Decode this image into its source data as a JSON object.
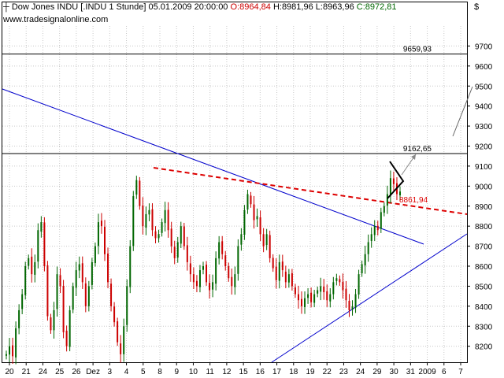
{
  "header": {
    "instrument": "Dow Jones INDU [.INDU  1 Stunde]",
    "datetime": "05.01.2009 20:00:00",
    "open": "O:8964,84",
    "high": "H:8981,96",
    "low": "L:8963,96",
    "close": "C:8972,81",
    "source": "www.tradesignalonline.com",
    "currency": "$"
  },
  "colors": {
    "up_candle": "#006600",
    "down_candle": "#cc0000",
    "trendline": "#0000cc",
    "resistance": "#dd0000",
    "level_line": "#000000",
    "grid": "#c8c8c8"
  },
  "chart_data": {
    "type": "candlestick",
    "y_axis": {
      "min": 8120,
      "max": 9800,
      "ticks": [
        8200,
        8300,
        8400,
        8500,
        8600,
        8700,
        8800,
        8900,
        9000,
        9100,
        9200,
        9300,
        9400,
        9500,
        9600,
        9700
      ],
      "side": "right"
    },
    "x_ticks": [
      "20",
      "21",
      "24",
      "25",
      "26",
      "Dez",
      "3",
      "4",
      "5",
      "8",
      "9",
      "10",
      "11",
      "12",
      "15",
      "16",
      "17",
      "18",
      "19",
      "22",
      "23",
      "24",
      "29",
      "30",
      "31",
      "2009",
      "6",
      "7"
    ],
    "levels": [
      {
        "value": 9659.93,
        "label": "9659,93"
      },
      {
        "value": 9162.65,
        "label": "9162,65"
      }
    ],
    "annotations": [
      {
        "label": "8861,94",
        "value": 8861.94
      }
    ],
    "price_path": [
      [
        0,
        8160
      ],
      [
        1,
        8200
      ],
      [
        2,
        8150
      ],
      [
        3,
        8290
      ],
      [
        4,
        8380
      ],
      [
        5,
        8460
      ],
      [
        6,
        8600
      ],
      [
        7,
        8640
      ],
      [
        8,
        8560
      ],
      [
        9,
        8620
      ],
      [
        10,
        8780
      ],
      [
        11,
        8820
      ],
      [
        12,
        8600
      ],
      [
        13,
        8350
      ],
      [
        14,
        8280
      ],
      [
        15,
        8380
      ],
      [
        16,
        8560
      ],
      [
        17,
        8500
      ],
      [
        18,
        8270
      ],
      [
        19,
        8200
      ],
      [
        20,
        8380
      ],
      [
        21,
        8500
      ],
      [
        22,
        8580
      ],
      [
        23,
        8610
      ],
      [
        24,
        8520
      ],
      [
        25,
        8400
      ],
      [
        26,
        8500
      ],
      [
        27,
        8620
      ],
      [
        28,
        8700
      ],
      [
        29,
        8820
      ],
      [
        30,
        8800
      ],
      [
        31,
        8660
      ],
      [
        32,
        8520
      ],
      [
        33,
        8400
      ],
      [
        34,
        8320
      ],
      [
        35,
        8220
      ],
      [
        36,
        8160
      ],
      [
        37,
        8300
      ],
      [
        38,
        8500
      ],
      [
        39,
        8700
      ],
      [
        40,
        8950
      ],
      [
        41,
        9030
      ],
      [
        42,
        8900
      ],
      [
        43,
        8800
      ],
      [
        44,
        8860
      ],
      [
        45,
        8880
      ],
      [
        46,
        8780
      ],
      [
        47,
        8740
      ],
      [
        48,
        8760
      ],
      [
        49,
        8820
      ],
      [
        50,
        8880
      ],
      [
        51,
        8780
      ],
      [
        52,
        8700
      ],
      [
        53,
        8640
      ],
      [
        54,
        8720
      ],
      [
        55,
        8800
      ],
      [
        56,
        8700
      ],
      [
        57,
        8620
      ],
      [
        58,
        8560
      ],
      [
        59,
        8520
      ],
      [
        60,
        8500
      ],
      [
        61,
        8580
      ],
      [
        62,
        8600
      ],
      [
        63,
        8520
      ],
      [
        64,
        8480
      ],
      [
        65,
        8520
      ],
      [
        66,
        8640
      ],
      [
        67,
        8720
      ],
      [
        68,
        8660
      ],
      [
        69,
        8600
      ],
      [
        70,
        8540
      ],
      [
        71,
        8500
      ],
      [
        72,
        8560
      ],
      [
        73,
        8700
      ],
      [
        74,
        8760
      ],
      [
        75,
        8880
      ],
      [
        76,
        8960
      ],
      [
        77,
        8910
      ],
      [
        78,
        8830
      ],
      [
        79,
        8850
      ],
      [
        80,
        8760
      ],
      [
        81,
        8700
      ],
      [
        82,
        8760
      ],
      [
        83,
        8640
      ],
      [
        84,
        8590
      ],
      [
        85,
        8530
      ],
      [
        86,
        8620
      ],
      [
        87,
        8580
      ],
      [
        88,
        8520
      ],
      [
        89,
        8560
      ],
      [
        90,
        8500
      ],
      [
        91,
        8460
      ],
      [
        92,
        8430
      ],
      [
        93,
        8400
      ],
      [
        94,
        8440
      ],
      [
        95,
        8460
      ],
      [
        96,
        8420
      ],
      [
        97,
        8460
      ],
      [
        98,
        8480
      ],
      [
        99,
        8500
      ],
      [
        100,
        8470
      ],
      [
        101,
        8430
      ],
      [
        102,
        8460
      ],
      [
        103,
        8520
      ],
      [
        104,
        8540
      ],
      [
        105,
        8520
      ],
      [
        106,
        8480
      ],
      [
        107,
        8430
      ],
      [
        108,
        8380
      ],
      [
        109,
        8400
      ],
      [
        110,
        8460
      ],
      [
        111,
        8560
      ],
      [
        112,
        8610
      ],
      [
        113,
        8660
      ],
      [
        114,
        8720
      ],
      [
        115,
        8760
      ],
      [
        116,
        8800
      ],
      [
        117,
        8780
      ],
      [
        118,
        8870
      ],
      [
        119,
        8900
      ],
      [
        120,
        8960
      ],
      [
        121,
        9040
      ],
      [
        122,
        9010
      ],
      [
        123,
        8960
      ],
      [
        124,
        8973
      ]
    ]
  }
}
